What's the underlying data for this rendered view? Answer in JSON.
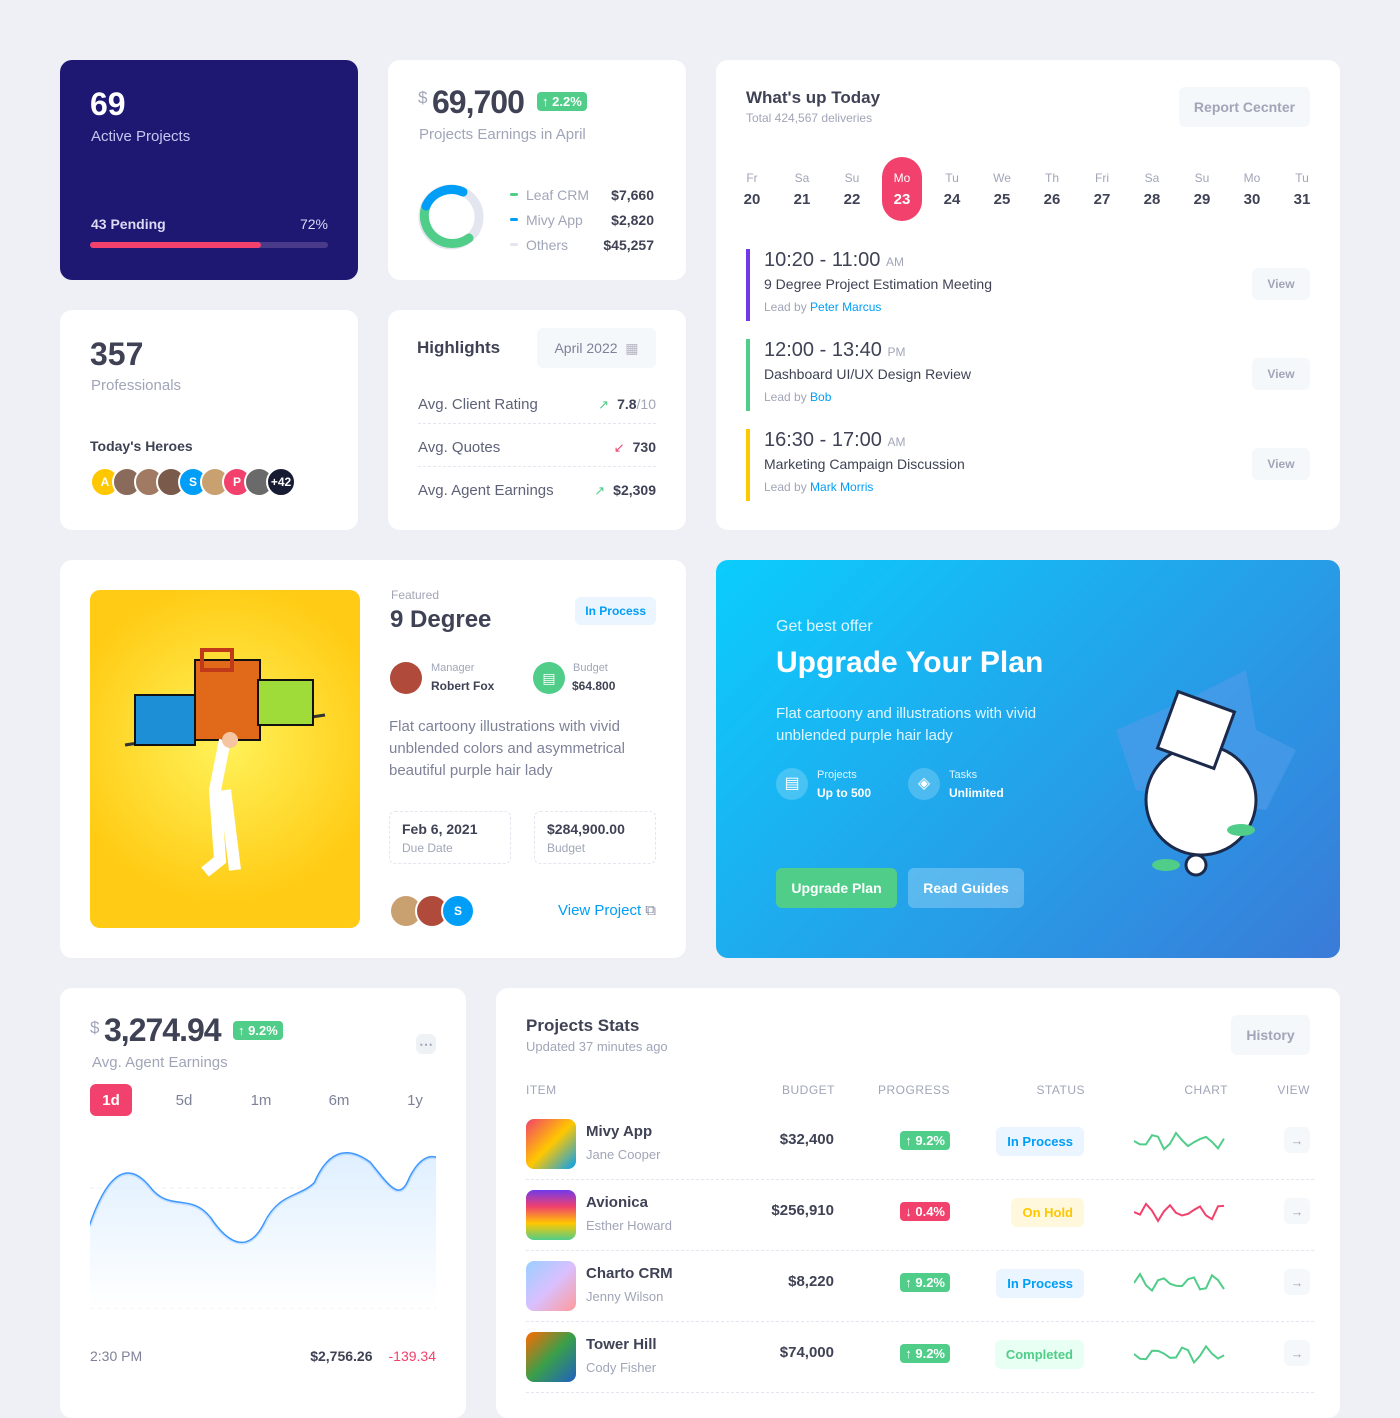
{
  "active": {
    "count": "69",
    "label": "Active Projects",
    "pending": "43 Pending",
    "percent": "72%",
    "progress": 72
  },
  "earnings": {
    "currency": "$",
    "amount": "69,700",
    "change": "2.2%",
    "label": "Projects Earnings in April",
    "items": [
      {
        "name": "Leaf CRM",
        "value": "$7,660",
        "color": "#50cd89"
      },
      {
        "name": "Mivy App",
        "value": "$2,820",
        "color": "#009ef7"
      },
      {
        "name": "Others",
        "value": "$45,257",
        "color": "#e4e6ef"
      }
    ]
  },
  "pros": {
    "count": "357",
    "label": "Professionals",
    "heroes": "Today's Heroes",
    "avatars": [
      {
        "t": "A",
        "c": "#ffc700"
      },
      {
        "t": "",
        "c": "#8a6a5a"
      },
      {
        "t": "",
        "c": "#a07a62"
      },
      {
        "t": "",
        "c": "#7a5a4a"
      },
      {
        "t": "S",
        "c": "#009ef7"
      },
      {
        "t": "",
        "c": "#c9a070"
      },
      {
        "t": "P",
        "c": "#f1416c"
      },
      {
        "t": "",
        "c": "#6a6a6a"
      },
      {
        "t": "+42",
        "c": "#181c32"
      }
    ]
  },
  "highlights": {
    "title": "Highlights",
    "period": "April 2022",
    "rows": [
      {
        "label": "Avg. Client Rating",
        "value": "7.8",
        "suffix": "/10",
        "trend": "up"
      },
      {
        "label": "Avg. Quotes",
        "value": "730",
        "suffix": "",
        "trend": "down"
      },
      {
        "label": "Avg. Agent Earnings",
        "value": "$2,309",
        "suffix": "",
        "trend": "up"
      }
    ]
  },
  "today": {
    "title": "What's up Today",
    "subtitle": "Total 424,567 deliveries",
    "button": "Report Cecnter",
    "days": [
      {
        "n": "Fr",
        "d": "20"
      },
      {
        "n": "Sa",
        "d": "21"
      },
      {
        "n": "Su",
        "d": "22"
      },
      {
        "n": "Mo",
        "d": "23",
        "active": true
      },
      {
        "n": "Tu",
        "d": "24"
      },
      {
        "n": "We",
        "d": "25"
      },
      {
        "n": "Th",
        "d": "26"
      },
      {
        "n": "Fri",
        "d": "27"
      },
      {
        "n": "Sa",
        "d": "28"
      },
      {
        "n": "Su",
        "d": "29"
      },
      {
        "n": "Mo",
        "d": "30"
      },
      {
        "n": "Tu",
        "d": "31"
      }
    ],
    "events": [
      {
        "time": "10:20 - 11:00",
        "ampm": "AM",
        "name": "9 Degree Project Estimation Meeting",
        "lead_prefix": "Lead by",
        "lead": "Peter Marcus",
        "color": "#7239ea",
        "view": "View"
      },
      {
        "time": "12:00 - 13:40",
        "ampm": "PM",
        "name": "Dashboard UI/UX Design Review",
        "lead_prefix": "Lead by",
        "lead": "Bob",
        "color": "#50cd89",
        "view": "View"
      },
      {
        "time": "16:30 - 17:00",
        "ampm": "AM",
        "name": "Marketing Campaign Discussion",
        "lead_prefix": "Lead by",
        "lead": "Mark Morris",
        "color": "#ffc700",
        "view": "View"
      }
    ]
  },
  "featured": {
    "tag": "Featured",
    "title": "9 Degree",
    "status": "In Process",
    "manager_label": "Manager",
    "manager": "Robert Fox",
    "budget_label": "Budget",
    "budget": "$64.800",
    "desc": "Flat cartoony illustrations with vivid unblended colors and asymmetrical beautiful purple hair lady",
    "due": "Feb 6, 2021",
    "due_label": "Due Date",
    "total": "$284,900.00",
    "total_label": "Budget",
    "link": "View Project",
    "avatars": [
      {
        "t": "",
        "c": "#c9a070"
      },
      {
        "t": "",
        "c": "#b04a3a"
      },
      {
        "t": "S",
        "c": "#009ef7"
      }
    ]
  },
  "upgrade": {
    "kicker": "Get best offer",
    "title": "Upgrade Your Plan",
    "desc": "Flat cartoony and illustrations with vivid unblended purple hair lady",
    "f1_label": "Projects",
    "f1_value": "Up to 500",
    "f2_label": "Tasks",
    "f2_value": "Unlimited",
    "primary": "Upgrade Plan",
    "secondary": "Read Guides"
  },
  "agent": {
    "currency": "$",
    "amount": "3,274.94",
    "change": "9.2%",
    "label": "Avg. Agent Earnings",
    "tabs": [
      "1d",
      "5d",
      "1m",
      "6m",
      "1y"
    ],
    "active_tab": "1d",
    "rows": [
      {
        "time": "2:30 PM",
        "value": "$2,756.26",
        "change": "-139.34"
      }
    ]
  },
  "stats": {
    "title": "Projects Stats",
    "subtitle": "Updated 37 minutes ago",
    "button": "History",
    "headers": [
      "ITEM",
      "BUDGET",
      "PROGRESS",
      "STATUS",
      "CHART",
      "VIEW"
    ],
    "rows": [
      {
        "name": "Mivy App",
        "owner": "Jane Cooper",
        "budget": "$32,400",
        "progress": "9.2%",
        "up": true,
        "status": "In Process"
      },
      {
        "name": "Avionica",
        "owner": "Esther Howard",
        "budget": "$256,910",
        "progress": "0.4%",
        "up": false,
        "status": "On Hold"
      },
      {
        "name": "Charto CRM",
        "owner": "Jenny Wilson",
        "budget": "$8,220",
        "progress": "9.2%",
        "up": true,
        "status": "In Process"
      },
      {
        "name": "Tower Hill",
        "owner": "Cody Fisher",
        "budget": "$74,000",
        "progress": "9.2%",
        "up": true,
        "status": "Completed"
      }
    ]
  }
}
